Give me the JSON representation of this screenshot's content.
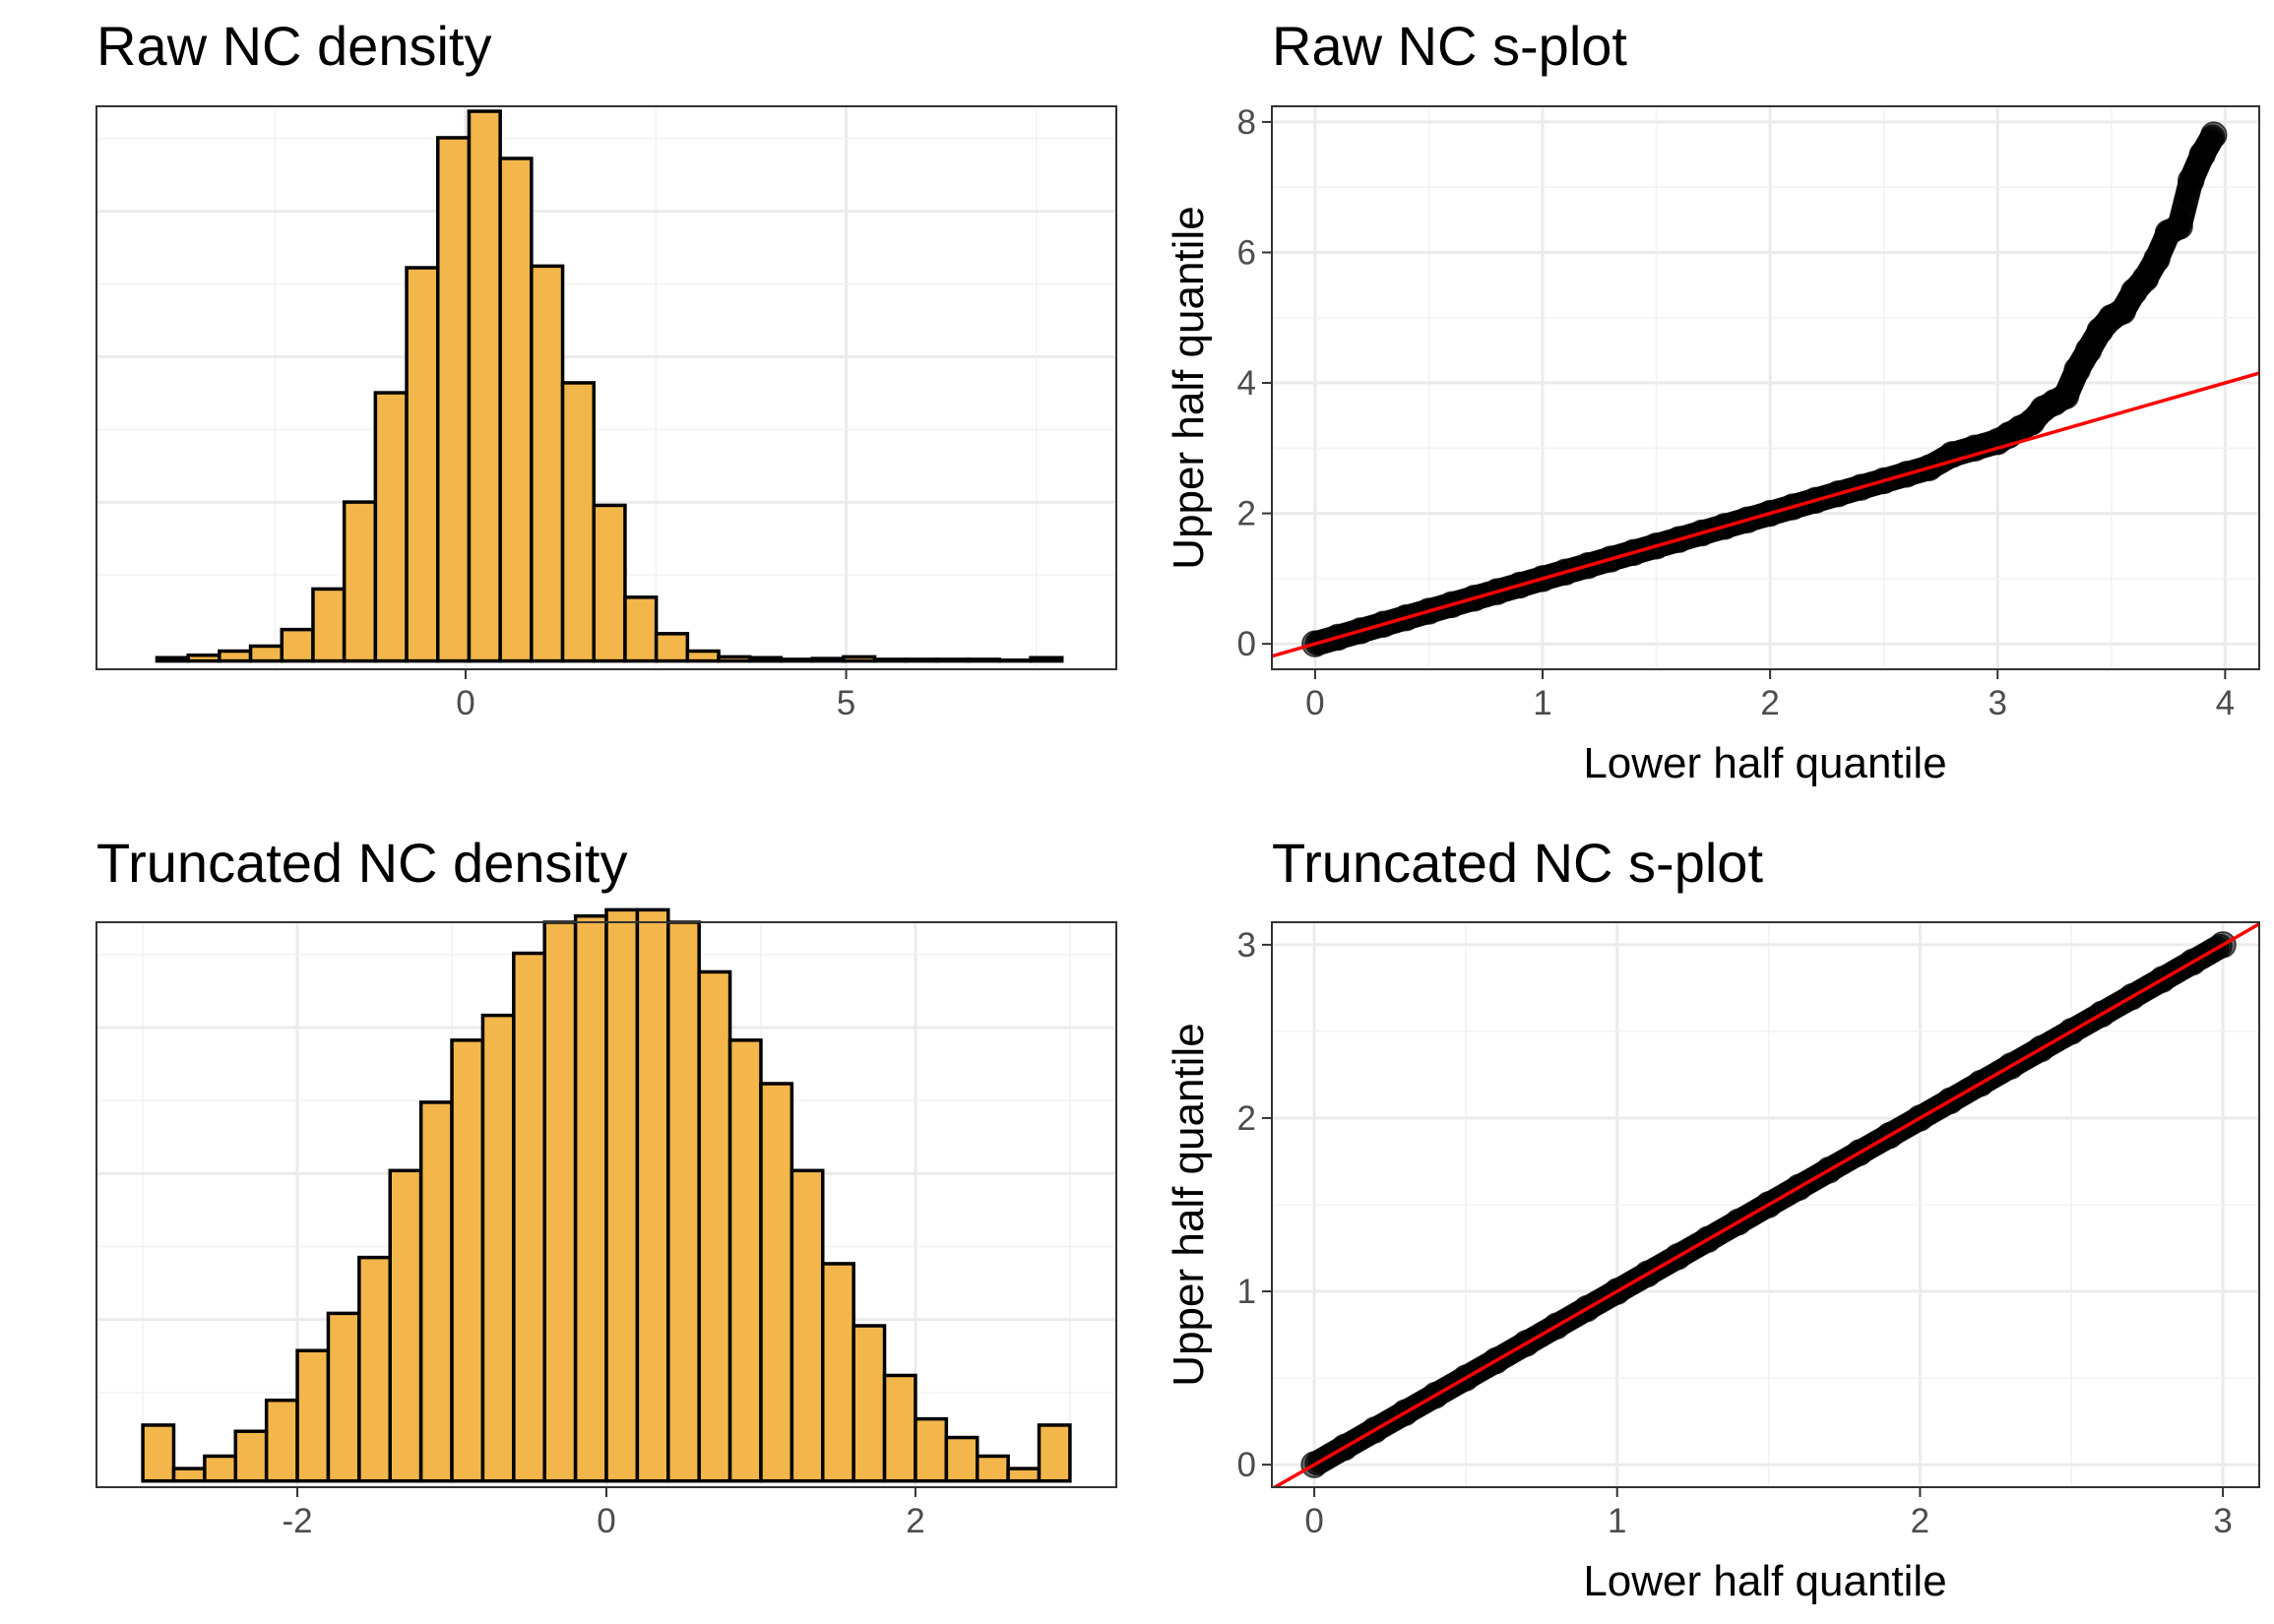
{
  "chart_data": [
    {
      "id": "raw-density",
      "type": "bar",
      "title": "Raw NC density",
      "xlabel": "",
      "ylabel": "",
      "xlim": [
        -4.85,
        8.55
      ],
      "ylim": [
        -0.1,
        6.7
      ],
      "x_ticks": [
        0,
        5
      ],
      "x_tick_labels": [
        "0",
        "5"
      ],
      "bin_width": 0.41,
      "bin_centers": [
        -3.85,
        -3.44,
        -3.03,
        -2.62,
        -2.21,
        -1.8,
        -1.39,
        -0.98,
        -0.57,
        -0.16,
        0.25,
        0.66,
        1.07,
        1.48,
        1.89,
        2.3,
        2.71,
        3.12,
        3.53,
        3.94,
        4.35,
        4.76,
        5.17,
        5.58,
        5.99,
        6.4,
        6.81,
        7.22,
        7.63
      ],
      "counts": [
        0.04,
        0.07,
        0.12,
        0.18,
        0.38,
        0.87,
        1.92,
        3.24,
        4.75,
        6.32,
        6.64,
        6.07,
        4.77,
        3.36,
        1.88,
        0.77,
        0.33,
        0.12,
        0.05,
        0.04,
        0.02,
        0.03,
        0.05,
        0.02,
        0.02,
        0.02,
        0.02,
        0.01,
        0.04
      ],
      "grid": true
    },
    {
      "id": "raw-splot",
      "type": "scatter",
      "title": "Raw NC s-plot",
      "xlabel": "Lower half quantile",
      "ylabel": "Upper half quantile",
      "xlim": [
        -0.19,
        4.15
      ],
      "ylim": [
        -0.39,
        8.24
      ],
      "x_ticks": [
        0,
        1,
        2,
        3,
        4
      ],
      "x_tick_labels": [
        "0",
        "1",
        "2",
        "3",
        "4"
      ],
      "y_ticks": [
        0,
        2,
        4,
        6,
        8
      ],
      "y_tick_labels": [
        "0",
        "2",
        "4",
        "6",
        "8"
      ],
      "points": [
        [
          0,
          0
        ],
        [
          0.1,
          0.1
        ],
        [
          0.2,
          0.2
        ],
        [
          0.3,
          0.3
        ],
        [
          0.4,
          0.4
        ],
        [
          0.5,
          0.5
        ],
        [
          0.6,
          0.6
        ],
        [
          0.7,
          0.7
        ],
        [
          0.8,
          0.8
        ],
        [
          0.9,
          0.9
        ],
        [
          1.0,
          1.0
        ],
        [
          1.1,
          1.1
        ],
        [
          1.2,
          1.2
        ],
        [
          1.3,
          1.3
        ],
        [
          1.4,
          1.4
        ],
        [
          1.5,
          1.5
        ],
        [
          1.6,
          1.6
        ],
        [
          1.7,
          1.7
        ],
        [
          1.8,
          1.8
        ],
        [
          1.9,
          1.9
        ],
        [
          2.0,
          2.0
        ],
        [
          2.1,
          2.1
        ],
        [
          2.2,
          2.2
        ],
        [
          2.3,
          2.3
        ],
        [
          2.4,
          2.4
        ],
        [
          2.5,
          2.5
        ],
        [
          2.6,
          2.6
        ],
        [
          2.7,
          2.7
        ],
        [
          2.8,
          2.9
        ],
        [
          2.9,
          3.0
        ],
        [
          3.0,
          3.1
        ],
        [
          3.05,
          3.2
        ],
        [
          3.1,
          3.3
        ],
        [
          3.15,
          3.4
        ],
        [
          3.2,
          3.6
        ],
        [
          3.25,
          3.7
        ],
        [
          3.3,
          3.8
        ],
        [
          3.35,
          4.2
        ],
        [
          3.4,
          4.5
        ],
        [
          3.45,
          4.8
        ],
        [
          3.5,
          5.0
        ],
        [
          3.55,
          5.1
        ],
        [
          3.6,
          5.4
        ],
        [
          3.65,
          5.6
        ],
        [
          3.7,
          5.9
        ],
        [
          3.75,
          6.3
        ],
        [
          3.8,
          6.4
        ],
        [
          3.85,
          7.1
        ],
        [
          3.9,
          7.5
        ],
        [
          3.95,
          7.8
        ]
      ],
      "reference_line": {
        "intercept": 0,
        "slope": 1
      },
      "grid": true
    },
    {
      "id": "truncated-density",
      "type": "bar",
      "title": "Truncated NC density",
      "xlabel": "",
      "ylabel": "",
      "xlim": [
        -3.3,
        3.3
      ],
      "ylim": [
        -0.1,
        9.0
      ],
      "x_ticks": [
        -2,
        0,
        2
      ],
      "x_tick_labels": [
        "-2",
        "0",
        "2"
      ],
      "bin_width": 0.2,
      "bin_centers": [
        -2.9,
        -2.7,
        -2.5,
        -2.3,
        -2.1,
        -1.9,
        -1.7,
        -1.5,
        -1.3,
        -1.1,
        -0.9,
        -0.7,
        -0.5,
        -0.3,
        -0.1,
        0.1,
        0.3,
        0.5,
        0.7,
        0.9,
        1.1,
        1.3,
        1.5,
        1.7,
        1.9,
        2.1,
        2.3,
        2.5,
        2.7,
        2.9
      ],
      "counts": [
        0.9,
        0.2,
        0.4,
        0.8,
        1.3,
        2.1,
        2.7,
        3.6,
        5.0,
        6.1,
        7.1,
        7.5,
        8.5,
        9.0,
        9.1,
        9.2,
        9.2,
        9.0,
        8.2,
        7.1,
        6.4,
        5.0,
        3.5,
        2.5,
        1.7,
        1.0,
        0.7,
        0.4,
        0.2,
        0.9
      ],
      "grid": true
    },
    {
      "id": "truncated-splot",
      "type": "scatter",
      "title": "Truncated NC s-plot",
      "xlabel": "Lower half quantile",
      "ylabel": "Upper half quantile",
      "xlim": [
        -0.14,
        3.12
      ],
      "ylim": [
        -0.13,
        3.13
      ],
      "x_ticks": [
        0,
        1,
        2,
        3
      ],
      "x_tick_labels": [
        "0",
        "1",
        "2",
        "3"
      ],
      "y_ticks": [
        0,
        1,
        2,
        3
      ],
      "y_tick_labels": [
        "0",
        "1",
        "2",
        "3"
      ],
      "points": [
        [
          0,
          0
        ],
        [
          0.1,
          0.1
        ],
        [
          0.2,
          0.2
        ],
        [
          0.3,
          0.3
        ],
        [
          0.4,
          0.4
        ],
        [
          0.5,
          0.5
        ],
        [
          0.6,
          0.6
        ],
        [
          0.7,
          0.7
        ],
        [
          0.8,
          0.8
        ],
        [
          0.9,
          0.9
        ],
        [
          1.0,
          1.0
        ],
        [
          1.1,
          1.1
        ],
        [
          1.2,
          1.2
        ],
        [
          1.3,
          1.3
        ],
        [
          1.4,
          1.4
        ],
        [
          1.5,
          1.5
        ],
        [
          1.6,
          1.6
        ],
        [
          1.7,
          1.7
        ],
        [
          1.8,
          1.8
        ],
        [
          1.9,
          1.9
        ],
        [
          2.0,
          2.0
        ],
        [
          2.1,
          2.1
        ],
        [
          2.2,
          2.2
        ],
        [
          2.3,
          2.3
        ],
        [
          2.4,
          2.4
        ],
        [
          2.5,
          2.5
        ],
        [
          2.6,
          2.6
        ],
        [
          2.7,
          2.7
        ],
        [
          2.8,
          2.8
        ],
        [
          2.9,
          2.9
        ],
        [
          3.0,
          3.0
        ]
      ],
      "reference_line": {
        "intercept": 0,
        "slope": 1
      },
      "grid": true
    }
  ]
}
